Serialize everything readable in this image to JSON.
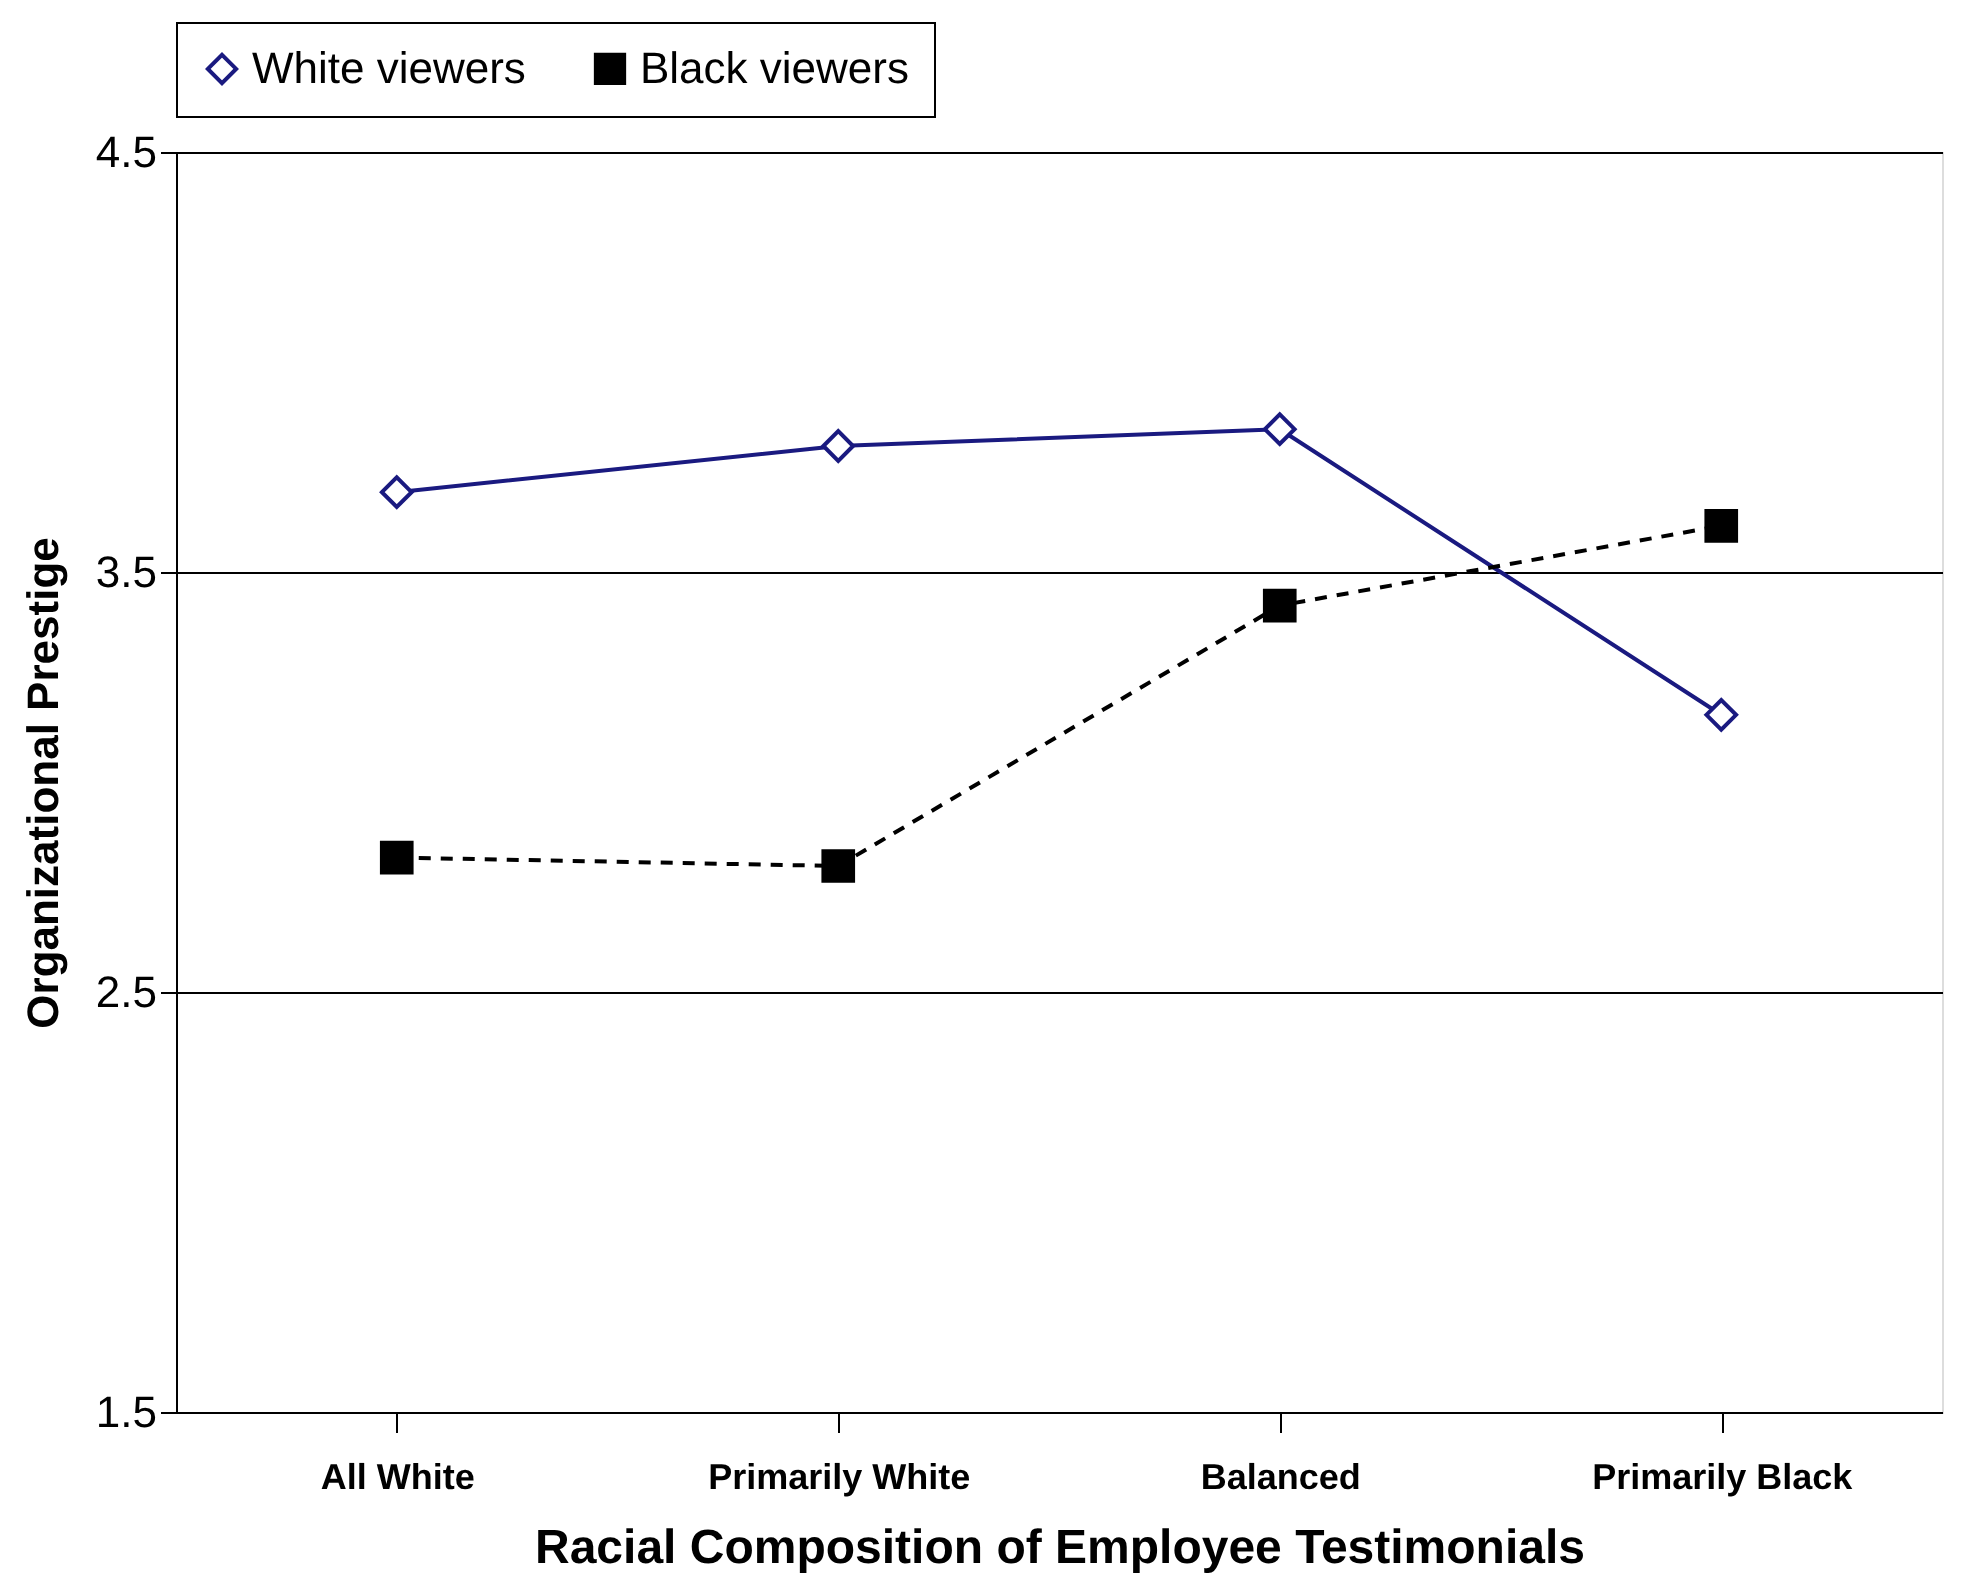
{
  "chart_data": {
    "type": "line",
    "xlabel": "Racial Composition of Employee Testimonials",
    "ylabel": "Organizational Prestige",
    "categories": [
      "All White",
      "Primarily White",
      "Balanced",
      "Primarily Black"
    ],
    "series": [
      {
        "name": "White viewers",
        "color": "#1a1a80",
        "marker": "diamond",
        "line_style": "solid",
        "values": [
          3.69,
          3.8,
          3.84,
          3.16
        ]
      },
      {
        "name": "Black viewers",
        "color": "#000000",
        "marker": "square",
        "line_style": "dashed",
        "values": [
          2.82,
          2.8,
          3.42,
          3.61
        ]
      }
    ],
    "ylim": [
      1.5,
      4.5
    ],
    "yticks": [
      1.5,
      2.5,
      3.5,
      4.5
    ],
    "grid": "y",
    "legend": "top"
  }
}
